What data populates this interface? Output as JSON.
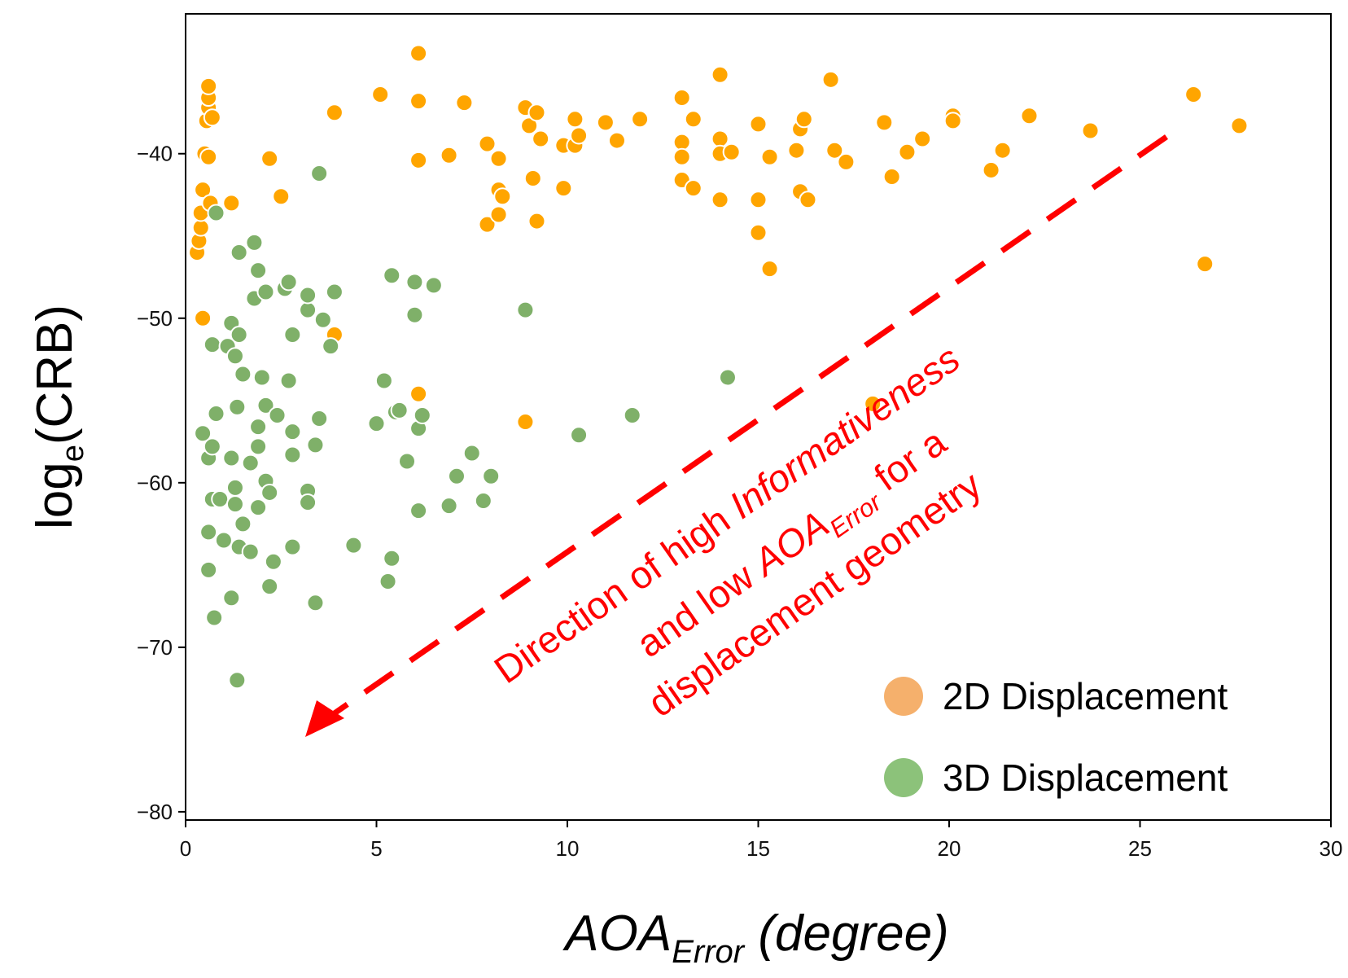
{
  "chart_data": {
    "type": "scatter",
    "xlabel": {
      "main": "AOA",
      "sub": "Error",
      "rest": " (degree)"
    },
    "ylabel": {
      "main": "log",
      "sub": "e",
      "rest": "(CRB)"
    },
    "xlim": [
      0,
      30
    ],
    "ylim": [
      -80.5,
      -31.5
    ],
    "xticks": [
      0,
      5,
      10,
      15,
      20,
      25,
      30
    ],
    "yticks": [
      -80,
      -70,
      -60,
      -50,
      -40
    ],
    "ytick_labels": [
      "−80",
      "−70",
      "−60",
      "−50",
      "−40"
    ],
    "grid": false,
    "legend_position": "bottom-right",
    "series": [
      {
        "name": "2D Displacement",
        "color": "#FFA500",
        "legend_color": "#F5B06C",
        "points": [
          [
            0.3,
            -46
          ],
          [
            0.35,
            -45.3
          ],
          [
            0.4,
            -44.5
          ],
          [
            0.4,
            -43.6
          ],
          [
            0.45,
            -42.2
          ],
          [
            0.5,
            -40
          ],
          [
            0.55,
            -38
          ],
          [
            0.6,
            -37.2
          ],
          [
            0.6,
            -36.6
          ],
          [
            0.6,
            -35.9
          ],
          [
            0.65,
            -43
          ],
          [
            0.6,
            -40.2
          ],
          [
            0.7,
            -37.8
          ],
          [
            1.2,
            -43
          ],
          [
            0.45,
            -50
          ],
          [
            2.2,
            -40.3
          ],
          [
            2.5,
            -42.6
          ],
          [
            3.9,
            -37.5
          ],
          [
            3.9,
            -51
          ],
          [
            5.1,
            -36.4
          ],
          [
            6.1,
            -33.9
          ],
          [
            6.1,
            -36.8
          ],
          [
            6.1,
            -40.4
          ],
          [
            6.1,
            -54.6
          ],
          [
            6.9,
            -40.1
          ],
          [
            7.3,
            -36.9
          ],
          [
            7.9,
            -39.4
          ],
          [
            7.9,
            -44.3
          ],
          [
            8.2,
            -40.3
          ],
          [
            8.2,
            -42.2
          ],
          [
            8.3,
            -42.6
          ],
          [
            8.2,
            -43.7
          ],
          [
            8.9,
            -37.2
          ],
          [
            8.9,
            -56.3
          ],
          [
            9.0,
            -38.3
          ],
          [
            9.2,
            -37.5
          ],
          [
            9.1,
            -41.5
          ],
          [
            9.2,
            -44.1
          ],
          [
            9.3,
            -39.1
          ],
          [
            9.9,
            -39.5
          ],
          [
            9.9,
            -42.1
          ],
          [
            10.2,
            -37.9
          ],
          [
            10.2,
            -39.5
          ],
          [
            10.3,
            -38.9
          ],
          [
            11.0,
            -38.1
          ],
          [
            11.3,
            -39.2
          ],
          [
            11.9,
            -37.9
          ],
          [
            13.0,
            -36.6
          ],
          [
            13.0,
            -39.3
          ],
          [
            13.0,
            -40.2
          ],
          [
            13.0,
            -41.6
          ],
          [
            13.3,
            -37.9
          ],
          [
            13.3,
            -42.1
          ],
          [
            14.0,
            -35.2
          ],
          [
            14.0,
            -39.1
          ],
          [
            14.0,
            -40.0
          ],
          [
            14.0,
            -42.8
          ],
          [
            14.3,
            -39.9
          ],
          [
            15.0,
            -38.2
          ],
          [
            15.0,
            -42.8
          ],
          [
            15.0,
            -44.8
          ],
          [
            15.3,
            -40.2
          ],
          [
            15.3,
            -47
          ],
          [
            16.0,
            -39.8
          ],
          [
            16.1,
            -38.5
          ],
          [
            16.1,
            -42.3
          ],
          [
            16.2,
            -37.9
          ],
          [
            16.3,
            -42.8
          ],
          [
            16.9,
            -35.5
          ],
          [
            17.0,
            -39.8
          ],
          [
            17.3,
            -40.5
          ],
          [
            18.0,
            -55.2
          ],
          [
            18.3,
            -38.1
          ],
          [
            18.5,
            -41.4
          ],
          [
            18.9,
            -39.9
          ],
          [
            19.3,
            -39.1
          ],
          [
            20.1,
            -37.7
          ],
          [
            20.1,
            -38
          ],
          [
            21.1,
            -41
          ],
          [
            21.4,
            -39.8
          ],
          [
            22.1,
            -37.7
          ],
          [
            23.7,
            -38.6
          ],
          [
            26.4,
            -36.4
          ],
          [
            26.7,
            -46.7
          ],
          [
            27.6,
            -38.3
          ]
        ]
      },
      {
        "name": "3D Displacement",
        "color": "#7FB069",
        "legend_color": "#8CC27A",
        "points": [
          [
            0.45,
            -57
          ],
          [
            0.6,
            -58.5
          ],
          [
            0.7,
            -57.8
          ],
          [
            0.8,
            -55.8
          ],
          [
            0.7,
            -61
          ],
          [
            0.9,
            -61
          ],
          [
            0.6,
            -63
          ],
          [
            0.6,
            -65.3
          ],
          [
            0.75,
            -68.2
          ],
          [
            1.0,
            -63.5
          ],
          [
            1.2,
            -67
          ],
          [
            0.8,
            -43.6
          ],
          [
            0.7,
            -51.6
          ],
          [
            1.1,
            -51.7
          ],
          [
            1.2,
            -50.3
          ],
          [
            1.4,
            -51
          ],
          [
            1.3,
            -52.3
          ],
          [
            1.5,
            -53.4
          ],
          [
            1.35,
            -55.4
          ],
          [
            1.2,
            -58.5
          ],
          [
            1.3,
            -60.3
          ],
          [
            1.3,
            -61.3
          ],
          [
            1.4,
            -63.9
          ],
          [
            1.5,
            -62.5
          ],
          [
            1.7,
            -64.2
          ],
          [
            1.35,
            -72
          ],
          [
            1.4,
            -46
          ],
          [
            1.8,
            -45.4
          ],
          [
            1.9,
            -47.1
          ],
          [
            1.8,
            -48.8
          ],
          [
            2.0,
            -53.6
          ],
          [
            1.9,
            -56.6
          ],
          [
            1.9,
            -57.8
          ],
          [
            1.7,
            -58.8
          ],
          [
            1.9,
            -61.5
          ],
          [
            2.1,
            -55.3
          ],
          [
            2.1,
            -59.9
          ],
          [
            2.2,
            -60.6
          ],
          [
            2.3,
            -64.8
          ],
          [
            2.2,
            -66.3
          ],
          [
            2.4,
            -55.9
          ],
          [
            2.1,
            -48.4
          ],
          [
            2.6,
            -48.2
          ],
          [
            2.7,
            -47.8
          ],
          [
            2.7,
            -53.8
          ],
          [
            2.8,
            -51
          ],
          [
            2.8,
            -56.9
          ],
          [
            2.8,
            -58.3
          ],
          [
            2.8,
            -63.9
          ],
          [
            3.2,
            -49.5
          ],
          [
            3.2,
            -48.6
          ],
          [
            3.2,
            -60.5
          ],
          [
            3.2,
            -61.2
          ],
          [
            3.4,
            -57.7
          ],
          [
            3.5,
            -56.1
          ],
          [
            3.5,
            -41.2
          ],
          [
            3.4,
            -67.3
          ],
          [
            3.6,
            -50.1
          ],
          [
            3.8,
            -51.7
          ],
          [
            3.9,
            -48.4
          ],
          [
            4.4,
            -63.8
          ],
          [
            5.0,
            -56.4
          ],
          [
            5.2,
            -53.8
          ],
          [
            5.3,
            -66
          ],
          [
            5.4,
            -64.6
          ],
          [
            5.5,
            -55.7
          ],
          [
            5.6,
            -55.6
          ],
          [
            5.8,
            -58.7
          ],
          [
            6.0,
            -49.8
          ],
          [
            6.0,
            -47.8
          ],
          [
            6.1,
            -56.7
          ],
          [
            6.2,
            -55.9
          ],
          [
            6.1,
            -61.7
          ],
          [
            5.4,
            -47.4
          ],
          [
            6.5,
            -48
          ],
          [
            6.9,
            -61.4
          ],
          [
            7.1,
            -59.6
          ],
          [
            7.5,
            -58.2
          ],
          [
            7.8,
            -61.1
          ],
          [
            8.0,
            -59.6
          ],
          [
            8.9,
            -49.5
          ],
          [
            10.3,
            -57.1
          ],
          [
            11.7,
            -55.9
          ],
          [
            14.2,
            -53.6
          ]
        ]
      }
    ]
  },
  "legend": [
    {
      "label": "2D Displacement",
      "color": "#F5B06C"
    },
    {
      "label": "3D Displacement",
      "color": "#8CC27A"
    }
  ],
  "annotation": {
    "line1": [
      "Direction of high ",
      "Informativeness"
    ],
    "line2": [
      "and low ",
      "AOA",
      "Error",
      " for a"
    ],
    "line3": "displacement geometry",
    "color": "#FF0000"
  }
}
